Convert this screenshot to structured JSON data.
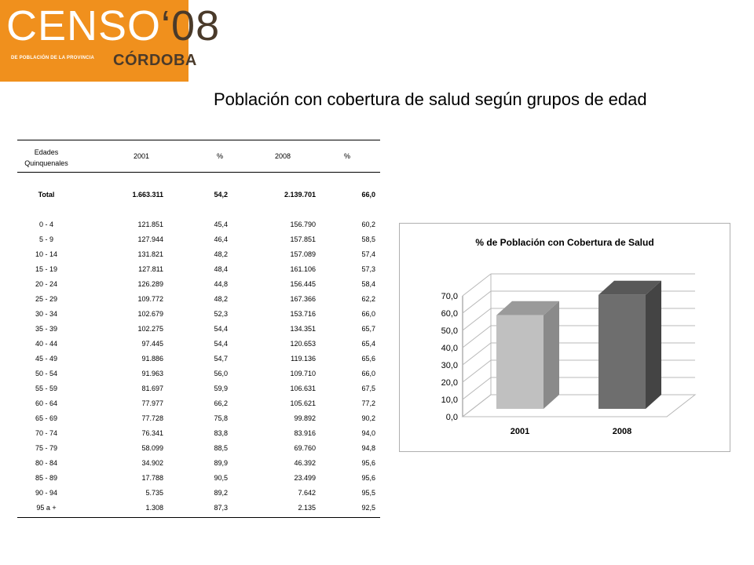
{
  "logo": {
    "main_text": "CENSO",
    "year_text": "‘08",
    "subtitle": "DE POBLACIÓN DE LA PROVINCIA",
    "city": "CÓRDOBA"
  },
  "page_title": "Población con cobertura de salud según grupos de edad",
  "table": {
    "headers": [
      "Edades Quinquenales",
      "2001",
      "%",
      "2008",
      "%"
    ],
    "total": [
      "Total",
      "1.663.311",
      "54,2",
      "2.139.701",
      "66,0"
    ],
    "rows": [
      [
        "0 - 4",
        "121.851",
        "45,4",
        "156.790",
        "60,2"
      ],
      [
        "5 - 9",
        "127.944",
        "46,4",
        "157.851",
        "58,5"
      ],
      [
        "10 - 14",
        "131.821",
        "48,2",
        "157.089",
        "57,4"
      ],
      [
        "15 - 19",
        "127.811",
        "48,4",
        "161.106",
        "57,3"
      ],
      [
        "20 - 24",
        "126.289",
        "44,8",
        "156.445",
        "58,4"
      ],
      [
        "25 - 29",
        "109.772",
        "48,2",
        "167.366",
        "62,2"
      ],
      [
        "30 - 34",
        "102.679",
        "52,3",
        "153.716",
        "66,0"
      ],
      [
        "35 - 39",
        "102.275",
        "54,4",
        "134.351",
        "65,7"
      ],
      [
        "40 - 44",
        "97.445",
        "54,4",
        "120.653",
        "65,4"
      ],
      [
        "45 - 49",
        "91.886",
        "54,7",
        "119.136",
        "65,6"
      ],
      [
        "50 - 54",
        "91.963",
        "56,0",
        "109.710",
        "66,0"
      ],
      [
        "55 - 59",
        "81.697",
        "59,9",
        "106.631",
        "67,5"
      ],
      [
        "60 - 64",
        "77.977",
        "66,2",
        "105.621",
        "77,2"
      ],
      [
        "65 - 69",
        "77.728",
        "75,8",
        "99.892",
        "90,2"
      ],
      [
        "70 - 74",
        "76.341",
        "83,8",
        "83.916",
        "94,0"
      ],
      [
        "75 - 79",
        "58.099",
        "88,5",
        "69.760",
        "94,8"
      ],
      [
        "80 - 84",
        "34.902",
        "89,9",
        "46.392",
        "95,6"
      ],
      [
        "85 - 89",
        "17.788",
        "90,5",
        "23.499",
        "95,6"
      ],
      [
        "90 - 94",
        "5.735",
        "89,2",
        "7.642",
        "95,5"
      ],
      [
        "95 a +",
        "1.308",
        "87,3",
        "2.135",
        "92,5"
      ]
    ]
  },
  "chart_data": {
    "type": "bar",
    "title": "% de Población con Cobertura de Salud",
    "categories": [
      "2001",
      "2008"
    ],
    "values": [
      54.2,
      66.0
    ],
    "colors": [
      "#c0c0c0",
      "#6e6e6e"
    ],
    "ylim": [
      0,
      70
    ],
    "yticks": [
      "0,0",
      "10,0",
      "20,0",
      "30,0",
      "40,0",
      "50,0",
      "60,0",
      "70,0"
    ],
    "grid": true,
    "style": "3d",
    "xlabel": "",
    "ylabel": ""
  }
}
